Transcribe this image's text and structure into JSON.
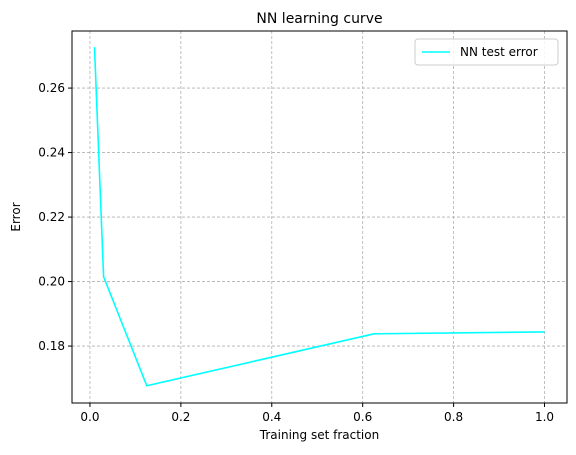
{
  "chart_data": {
    "type": "line",
    "title": "NN learning curve",
    "xlabel": "Training set fraction",
    "ylabel": "Error",
    "xlim": [
      -0.0395,
      1.0495
    ],
    "ylim": [
      0.16235,
      0.2777
    ],
    "xticks": [
      0.0,
      0.2,
      0.4,
      0.6,
      0.8,
      1.0
    ],
    "xtick_labels": [
      "0.0",
      "0.2",
      "0.4",
      "0.6",
      "0.8",
      "1.0"
    ],
    "yticks": [
      0.18,
      0.2,
      0.22,
      0.24,
      0.26
    ],
    "ytick_labels": [
      "0.18",
      "0.20",
      "0.22",
      "0.24",
      "0.26"
    ],
    "grid": true,
    "legend": "top-right",
    "series": [
      {
        "name": "NN test error",
        "color": "#00ffff",
        "x": [
          0.01,
          0.03,
          0.125,
          0.625,
          1.0
        ],
        "y": [
          0.2727,
          0.2015,
          0.1677,
          0.1838,
          0.1844
        ]
      }
    ]
  }
}
